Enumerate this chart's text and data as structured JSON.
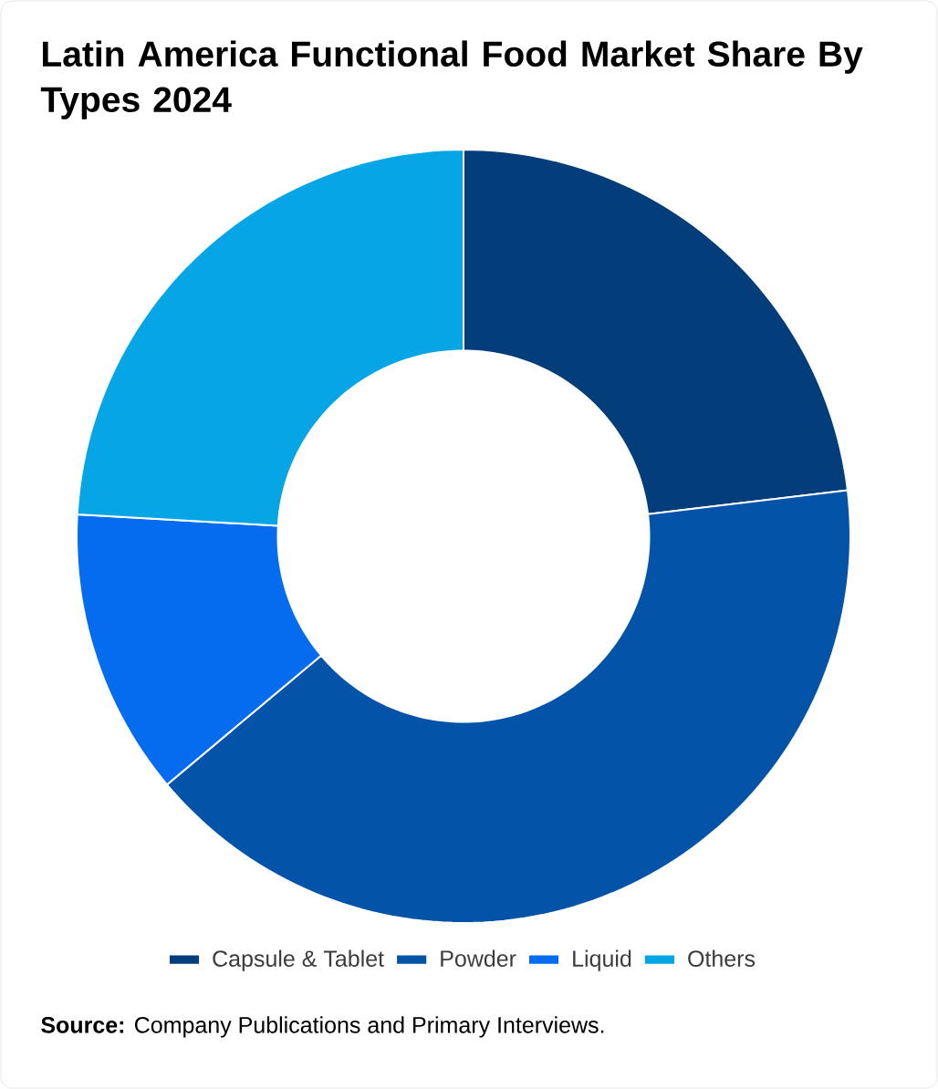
{
  "chart_data": {
    "type": "donut",
    "title": "Latin America Functional Food Market Share By Types 2024",
    "categories": [
      "Capsule & Tablet",
      "Powder",
      "Liquid",
      "Others"
    ],
    "values": [
      23.1,
      40.8,
      12.0,
      24.1
    ],
    "colors": [
      "#033e7a",
      "#0353a8",
      "#056cf0",
      "#05a5e6"
    ],
    "legend": "bottom",
    "annotations": [
      "**Source:** Company Publications and Primary Interviews."
    ]
  }
}
